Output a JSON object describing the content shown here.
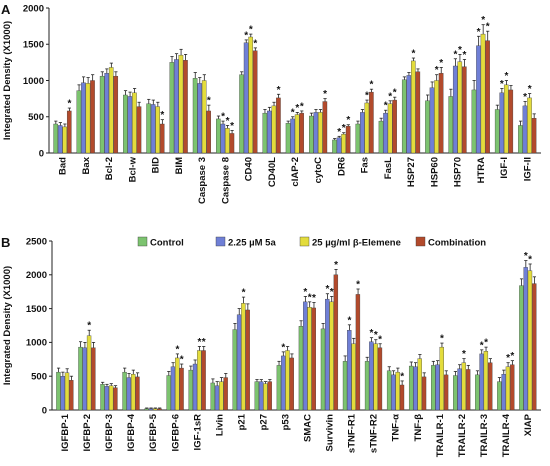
{
  "panels": {
    "a": {
      "letter": "A"
    },
    "b": {
      "letter": "B"
    }
  },
  "legend": [
    {
      "label": "Control",
      "color": "#7cc36f"
    },
    {
      "label": "2.25 µM 5a",
      "color": "#6f7fd6"
    },
    {
      "label": "25 µg/ml β-Elemene",
      "color": "#e3dc3c"
    },
    {
      "label": "Combination",
      "color": "#b24a2c"
    }
  ],
  "chart_data": [
    {
      "type": "bar",
      "title": "",
      "xlabel": "",
      "ylabel": "Integrated Density (X1000)",
      "ylim": [
        0,
        2000
      ],
      "yticks": [
        0,
        500,
        1000,
        1500,
        2000
      ],
      "grid": false,
      "legend": "none",
      "categories": [
        "Bad",
        "Bax",
        "Bcl-2",
        "Bcl-w",
        "BID",
        "BIM",
        "Caspase 3",
        "Caspase 8",
        "CD40",
        "CD40L",
        "cIAP-2",
        "cytoC",
        "DR6",
        "Fas",
        "FasL",
        "HSP27",
        "HSP60",
        "HSP70",
        "HTRA",
        "IGF-I",
        "IGF-II"
      ],
      "series": [
        {
          "name": "Control",
          "color": "#7cc36f",
          "values": [
            400,
            860,
            1060,
            800,
            680,
            1250,
            1030,
            470,
            1080,
            550,
            410,
            510,
            180,
            400,
            440,
            1010,
            720,
            780,
            870,
            600,
            380
          ],
          "errors": [
            40,
            80,
            60,
            60,
            60,
            80,
            80,
            40,
            40,
            50,
            30,
            40,
            20,
            40,
            40,
            40,
            80,
            100,
            130,
            60,
            60
          ]
        },
        {
          "name": "2.25 µM 5a",
          "color": "#6f7fd6",
          "values": [
            380,
            970,
            1100,
            780,
            670,
            1290,
            960,
            400,
            1520,
            580,
            470,
            560,
            210,
            560,
            550,
            1070,
            900,
            1200,
            1480,
            830,
            650
          ]
        },
        {
          "name": "25 µg/ml β-Elemene",
          "color": "#e3dc3c",
          "values": [
            360,
            960,
            1180,
            830,
            640,
            1350,
            1000,
            340,
            1600,
            650,
            530,
            560,
            260,
            690,
            680,
            1270,
            1000,
            1260,
            1640,
            940,
            760
          ]
        },
        {
          "name": "Combination",
          "color": "#b24a2c",
          "values": [
            580,
            1000,
            1060,
            640,
            400,
            1280,
            580,
            270,
            1410,
            760,
            550,
            710,
            370,
            840,
            730,
            1120,
            1100,
            1190,
            1550,
            870,
            480
          ]
        }
      ],
      "annotations": [
        {
          "category": "Bad",
          "series": "Combination",
          "text": "*"
        },
        {
          "category": "BID",
          "series": "Combination",
          "text": "*"
        },
        {
          "category": "Caspase 3",
          "series": "Combination",
          "text": "*"
        },
        {
          "category": "Caspase 8",
          "series": "2.25 µM 5a",
          "text": "*"
        },
        {
          "category": "Caspase 8",
          "series": "25 µg/ml β-Elemene",
          "text": "*"
        },
        {
          "category": "Caspase 8",
          "series": "Combination",
          "text": "*"
        },
        {
          "category": "CD40",
          "series": "2.25 µM 5a",
          "text": "*"
        },
        {
          "category": "CD40",
          "series": "25 µg/ml β-Elemene",
          "text": "*"
        },
        {
          "category": "CD40",
          "series": "Combination",
          "text": "*"
        },
        {
          "category": "CD40L",
          "series": "Combination",
          "text": "*"
        },
        {
          "category": "cIAP-2",
          "series": "2.25 µM 5a",
          "text": "*"
        },
        {
          "category": "cIAP-2",
          "series": "25 µg/ml β-Elemene",
          "text": "*"
        },
        {
          "category": "cIAP-2",
          "series": "Combination",
          "text": "*"
        },
        {
          "category": "cytoC",
          "series": "Combination",
          "text": "*"
        },
        {
          "category": "DR6",
          "series": "2.25 µM 5a",
          "text": "*"
        },
        {
          "category": "DR6",
          "series": "25 µg/ml β-Elemene",
          "text": "*"
        },
        {
          "category": "DR6",
          "series": "Combination",
          "text": "*"
        },
        {
          "category": "Fas",
          "series": "25 µg/ml β-Elemene",
          "text": "*"
        },
        {
          "category": "Fas",
          "series": "Combination",
          "text": "*"
        },
        {
          "category": "FasL",
          "series": "2.25 µM 5a",
          "text": "*"
        },
        {
          "category": "FasL",
          "series": "25 µg/ml β-Elemene",
          "text": "*"
        },
        {
          "category": "FasL",
          "series": "Combination",
          "text": "*"
        },
        {
          "category": "HSP27",
          "series": "25 µg/ml β-Elemene",
          "text": "*"
        },
        {
          "category": "HSP60",
          "series": "25 µg/ml β-Elemene",
          "text": "*"
        },
        {
          "category": "HSP60",
          "series": "Combination",
          "text": "*"
        },
        {
          "category": "HSP70",
          "series": "2.25 µM 5a",
          "text": "*"
        },
        {
          "category": "HSP70",
          "series": "25 µg/ml β-Elemene",
          "text": "*"
        },
        {
          "category": "HSP70",
          "series": "Combination",
          "text": "*"
        },
        {
          "category": "HTRA",
          "series": "2.25 µM 5a",
          "text": "*"
        },
        {
          "category": "HTRA",
          "series": "25 µg/ml β-Elemene",
          "text": "*"
        },
        {
          "category": "HTRA",
          "series": "Combination",
          "text": "*"
        },
        {
          "category": "IGF-I",
          "series": "2.25 µM 5a",
          "text": "*"
        },
        {
          "category": "IGF-I",
          "series": "25 µg/ml β-Elemene",
          "text": "*"
        },
        {
          "category": "IGF-II",
          "series": "2.25 µM 5a",
          "text": "*"
        },
        {
          "category": "IGF-II",
          "series": "25 µg/ml β-Elemene",
          "text": "*"
        }
      ]
    },
    {
      "type": "bar",
      "title": "",
      "xlabel": "",
      "ylabel": "Integrated Density (X1000)",
      "ylim": [
        0,
        2500
      ],
      "yticks": [
        0,
        500,
        1000,
        1500,
        2000,
        2500
      ],
      "grid": false,
      "legend": "top",
      "categories": [
        "IGFBP-1",
        "IGFBP-2",
        "IGFBP-3",
        "IGFBP-4",
        "IGFBP-5",
        "IGFBP-6",
        "IGF-1sR",
        "Livin",
        "p21",
        "p27",
        "p53",
        "SMAC",
        "Survivin",
        "sTNF-R1",
        "sTNF-R2",
        "TNF-α",
        "TNF-β",
        "TRAILR-1",
        "TRAILR-2",
        "TRAILR-3",
        "TRAILR-4",
        "XIAP"
      ],
      "series": [
        {
          "name": "Control",
          "color": "#7cc36f",
          "values": [
            560,
            930,
            380,
            560,
            20,
            510,
            590,
            400,
            1190,
            420,
            660,
            1240,
            1200,
            720,
            720,
            580,
            650,
            660,
            510,
            520,
            420,
            1840
          ],
          "errors": [
            60,
            80,
            30,
            60,
            10,
            60,
            60,
            60,
            90,
            30,
            60,
            80,
            80,
            80,
            60,
            60,
            60,
            60,
            60,
            60,
            60,
            100
          ]
        },
        {
          "name": "2.25 µM 5a",
          "color": "#6f7fd6",
          "values": [
            500,
            920,
            350,
            480,
            20,
            640,
            680,
            360,
            1410,
            420,
            800,
            1600,
            1640,
            1180,
            1010,
            520,
            640,
            670,
            610,
            830,
            530,
            2110
          ]
        },
        {
          "name": "25 µg/ml β-Elemene",
          "color": "#e3dc3c",
          "values": [
            550,
            1100,
            360,
            530,
            20,
            770,
            880,
            420,
            1580,
            390,
            880,
            1520,
            1600,
            980,
            980,
            560,
            760,
            930,
            700,
            870,
            640,
            2060
          ]
        },
        {
          "name": "Combination",
          "color": "#b24a2c",
          "values": [
            440,
            920,
            330,
            490,
            20,
            620,
            880,
            480,
            1480,
            420,
            770,
            1510,
            2000,
            1710,
            920,
            370,
            490,
            520,
            600,
            700,
            670,
            1870
          ]
        }
      ],
      "annotations": [
        {
          "category": "IGFBP-2",
          "series": "25 µg/ml β-Elemene",
          "text": "*"
        },
        {
          "category": "IGFBP-6",
          "series": "25 µg/ml β-Elemene",
          "text": "*"
        },
        {
          "category": "IGFBP-6",
          "series": "Combination",
          "text": "*"
        },
        {
          "category": "IGF-1sR",
          "series": "25 µg/ml β-Elemene",
          "text": "*"
        },
        {
          "category": "IGF-1sR",
          "series": "Combination",
          "text": "*"
        },
        {
          "category": "p21",
          "series": "25 µg/ml β-Elemene",
          "text": "*"
        },
        {
          "category": "p53",
          "series": "2.25 µM 5a",
          "text": "*"
        },
        {
          "category": "SMAC",
          "series": "2.25 µM 5a",
          "text": "*"
        },
        {
          "category": "SMAC",
          "series": "25 µg/ml β-Elemene",
          "text": "*"
        },
        {
          "category": "SMAC",
          "series": "Combination",
          "text": "*"
        },
        {
          "category": "Survivin",
          "series": "2.25 µM 5a",
          "text": "*"
        },
        {
          "category": "Survivin",
          "series": "25 µg/ml β-Elemene",
          "text": "*"
        },
        {
          "category": "Survivin",
          "series": "Combination",
          "text": "*"
        },
        {
          "category": "sTNF-R1",
          "series": "2.25 µM 5a",
          "text": "*"
        },
        {
          "category": "sTNF-R1",
          "series": "Combination",
          "text": "*"
        },
        {
          "category": "sTNF-R2",
          "series": "2.25 µM 5a",
          "text": "*"
        },
        {
          "category": "sTNF-R2",
          "series": "25 µg/ml β-Elemene",
          "text": "*"
        },
        {
          "category": "sTNF-R2",
          "series": "Combination",
          "text": "*"
        },
        {
          "category": "TNF-α",
          "series": "Combination",
          "text": "*"
        },
        {
          "category": "TRAILR-1",
          "series": "25 µg/ml β-Elemene",
          "text": "*"
        },
        {
          "category": "TRAILR-2",
          "series": "25 µg/ml β-Elemene",
          "text": "*"
        },
        {
          "category": "TRAILR-3",
          "series": "2.25 µM 5a",
          "text": "*"
        },
        {
          "category": "TRAILR-3",
          "series": "25 µg/ml β-Elemene",
          "text": "*"
        },
        {
          "category": "TRAILR-4",
          "series": "25 µg/ml β-Elemene",
          "text": "*"
        },
        {
          "category": "TRAILR-4",
          "series": "Combination",
          "text": "*"
        },
        {
          "category": "XIAP",
          "series": "2.25 µM 5a",
          "text": "*"
        },
        {
          "category": "XIAP",
          "series": "25 µg/ml β-Elemene",
          "text": "*"
        }
      ]
    }
  ]
}
